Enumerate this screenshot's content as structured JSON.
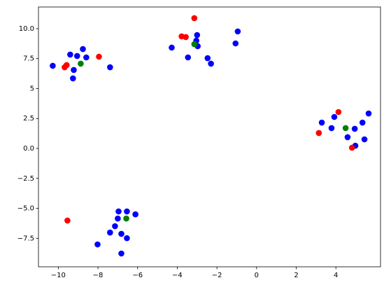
{
  "chart_data": {
    "type": "scatter",
    "xlim": [
      -11.0,
      6.25
    ],
    "ylim": [
      -9.88,
      11.81
    ],
    "xticks": [
      {
        "value": -10,
        "label": "−10"
      },
      {
        "value": -8,
        "label": "−8"
      },
      {
        "value": -6,
        "label": "−6"
      },
      {
        "value": -4,
        "label": "−4"
      },
      {
        "value": -2,
        "label": "−2"
      },
      0,
      2,
      4
    ],
    "yticks": [
      {
        "value": -7.5,
        "label": "−7.5"
      },
      {
        "value": -5,
        "label": "−5.0"
      },
      {
        "value": -2.5,
        "label": "−2.5"
      },
      {
        "value": 0,
        "label": "0.0"
      },
      2.5,
      5,
      7.5,
      {
        "value": 10,
        "label": "10.0"
      }
    ],
    "series": [
      {
        "color": "#0000ff",
        "x": [
          -10.28,
          -9.4,
          -9.05,
          -8.76,
          -8.59,
          -9.22,
          -9.26,
          -7.39,
          -4.28,
          -3.0,
          -3.04,
          -2.97,
          -3.46,
          -2.47,
          -2.3,
          -0.95,
          -1.06,
          3.29,
          3.92,
          3.78,
          4.59,
          4.95,
          5.34,
          5.65,
          5.44,
          4.98,
          -6.96,
          -6.54,
          -6.11,
          -7.0,
          -7.14,
          -7.39,
          -6.82,
          -6.54,
          -8.02,
          -6.82
        ],
        "values": [
          6.9,
          7.84,
          7.72,
          8.3,
          7.6,
          6.55,
          5.85,
          6.78,
          8.42,
          9.47,
          9.0,
          8.54,
          7.6,
          7.54,
          7.08,
          9.77,
          8.77,
          2.16,
          2.63,
          1.7,
          0.94,
          1.64,
          2.16,
          2.92,
          0.76,
          0.23,
          -5.26,
          -5.26,
          -5.5,
          -5.85,
          -6.49,
          -7.02,
          -7.13,
          -7.49,
          -8.01,
          -8.77
        ]
      },
      {
        "color": "#ff0000",
        "x": [
          -9.68,
          -9.58,
          -7.95,
          -3.78,
          -3.57,
          -3.14,
          3.14,
          4.13,
          4.81,
          -9.54
        ],
        "values": [
          6.78,
          6.96,
          7.66,
          9.36,
          9.3,
          10.88,
          1.29,
          3.04,
          0.06,
          -6.02
        ]
      },
      {
        "color": "#008000",
        "x": [
          -8.87,
          -3.14,
          4.49,
          -6.57
        ],
        "values": [
          7.08,
          8.71,
          1.7,
          -5.85
        ]
      }
    ]
  }
}
